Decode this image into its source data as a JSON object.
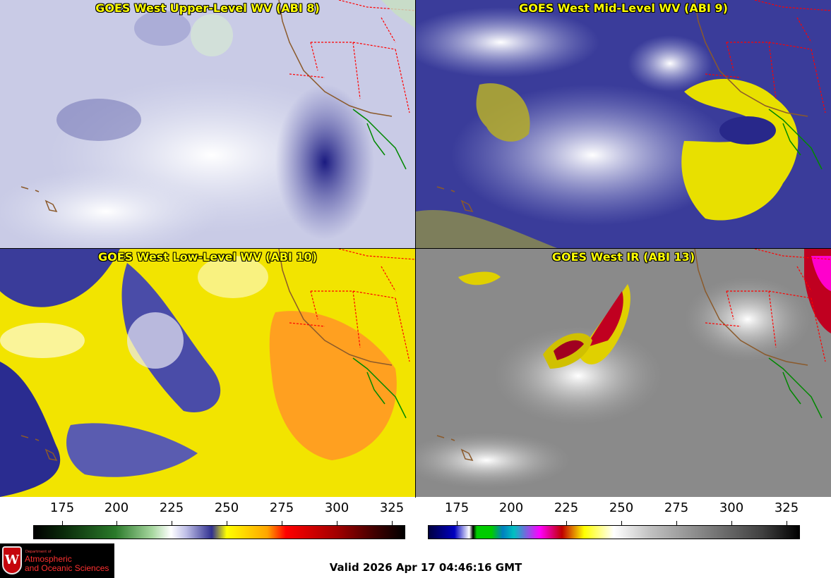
{
  "panels": [
    {
      "title": "GOES West Upper-Level WV (ABI 8)"
    },
    {
      "title": "GOES West Mid-Level WV (ABI 9)"
    },
    {
      "title": "GOES West Low-Level WV (ABI 10)"
    },
    {
      "title": "GOES West IR (ABI 13)"
    }
  ],
  "colorbars": [
    {
      "ticks": [
        "175",
        "200",
        "225",
        "250",
        "275",
        "300",
        "325"
      ]
    },
    {
      "ticks": [
        "175",
        "200",
        "225",
        "250",
        "275",
        "300",
        "325"
      ]
    }
  ],
  "valid_time": "Valid 2026 Apr 17 04:46:16 GMT",
  "logo": {
    "dept": "Department of",
    "line1": "Atmospheric",
    "line2": "and Oceanic Sciences",
    "crest_letter": "W"
  },
  "colors": {
    "title": "#ffff00",
    "state_lines": "#ff0000",
    "coast": "#8b5a2b",
    "mexico_coast": "#008800"
  }
}
